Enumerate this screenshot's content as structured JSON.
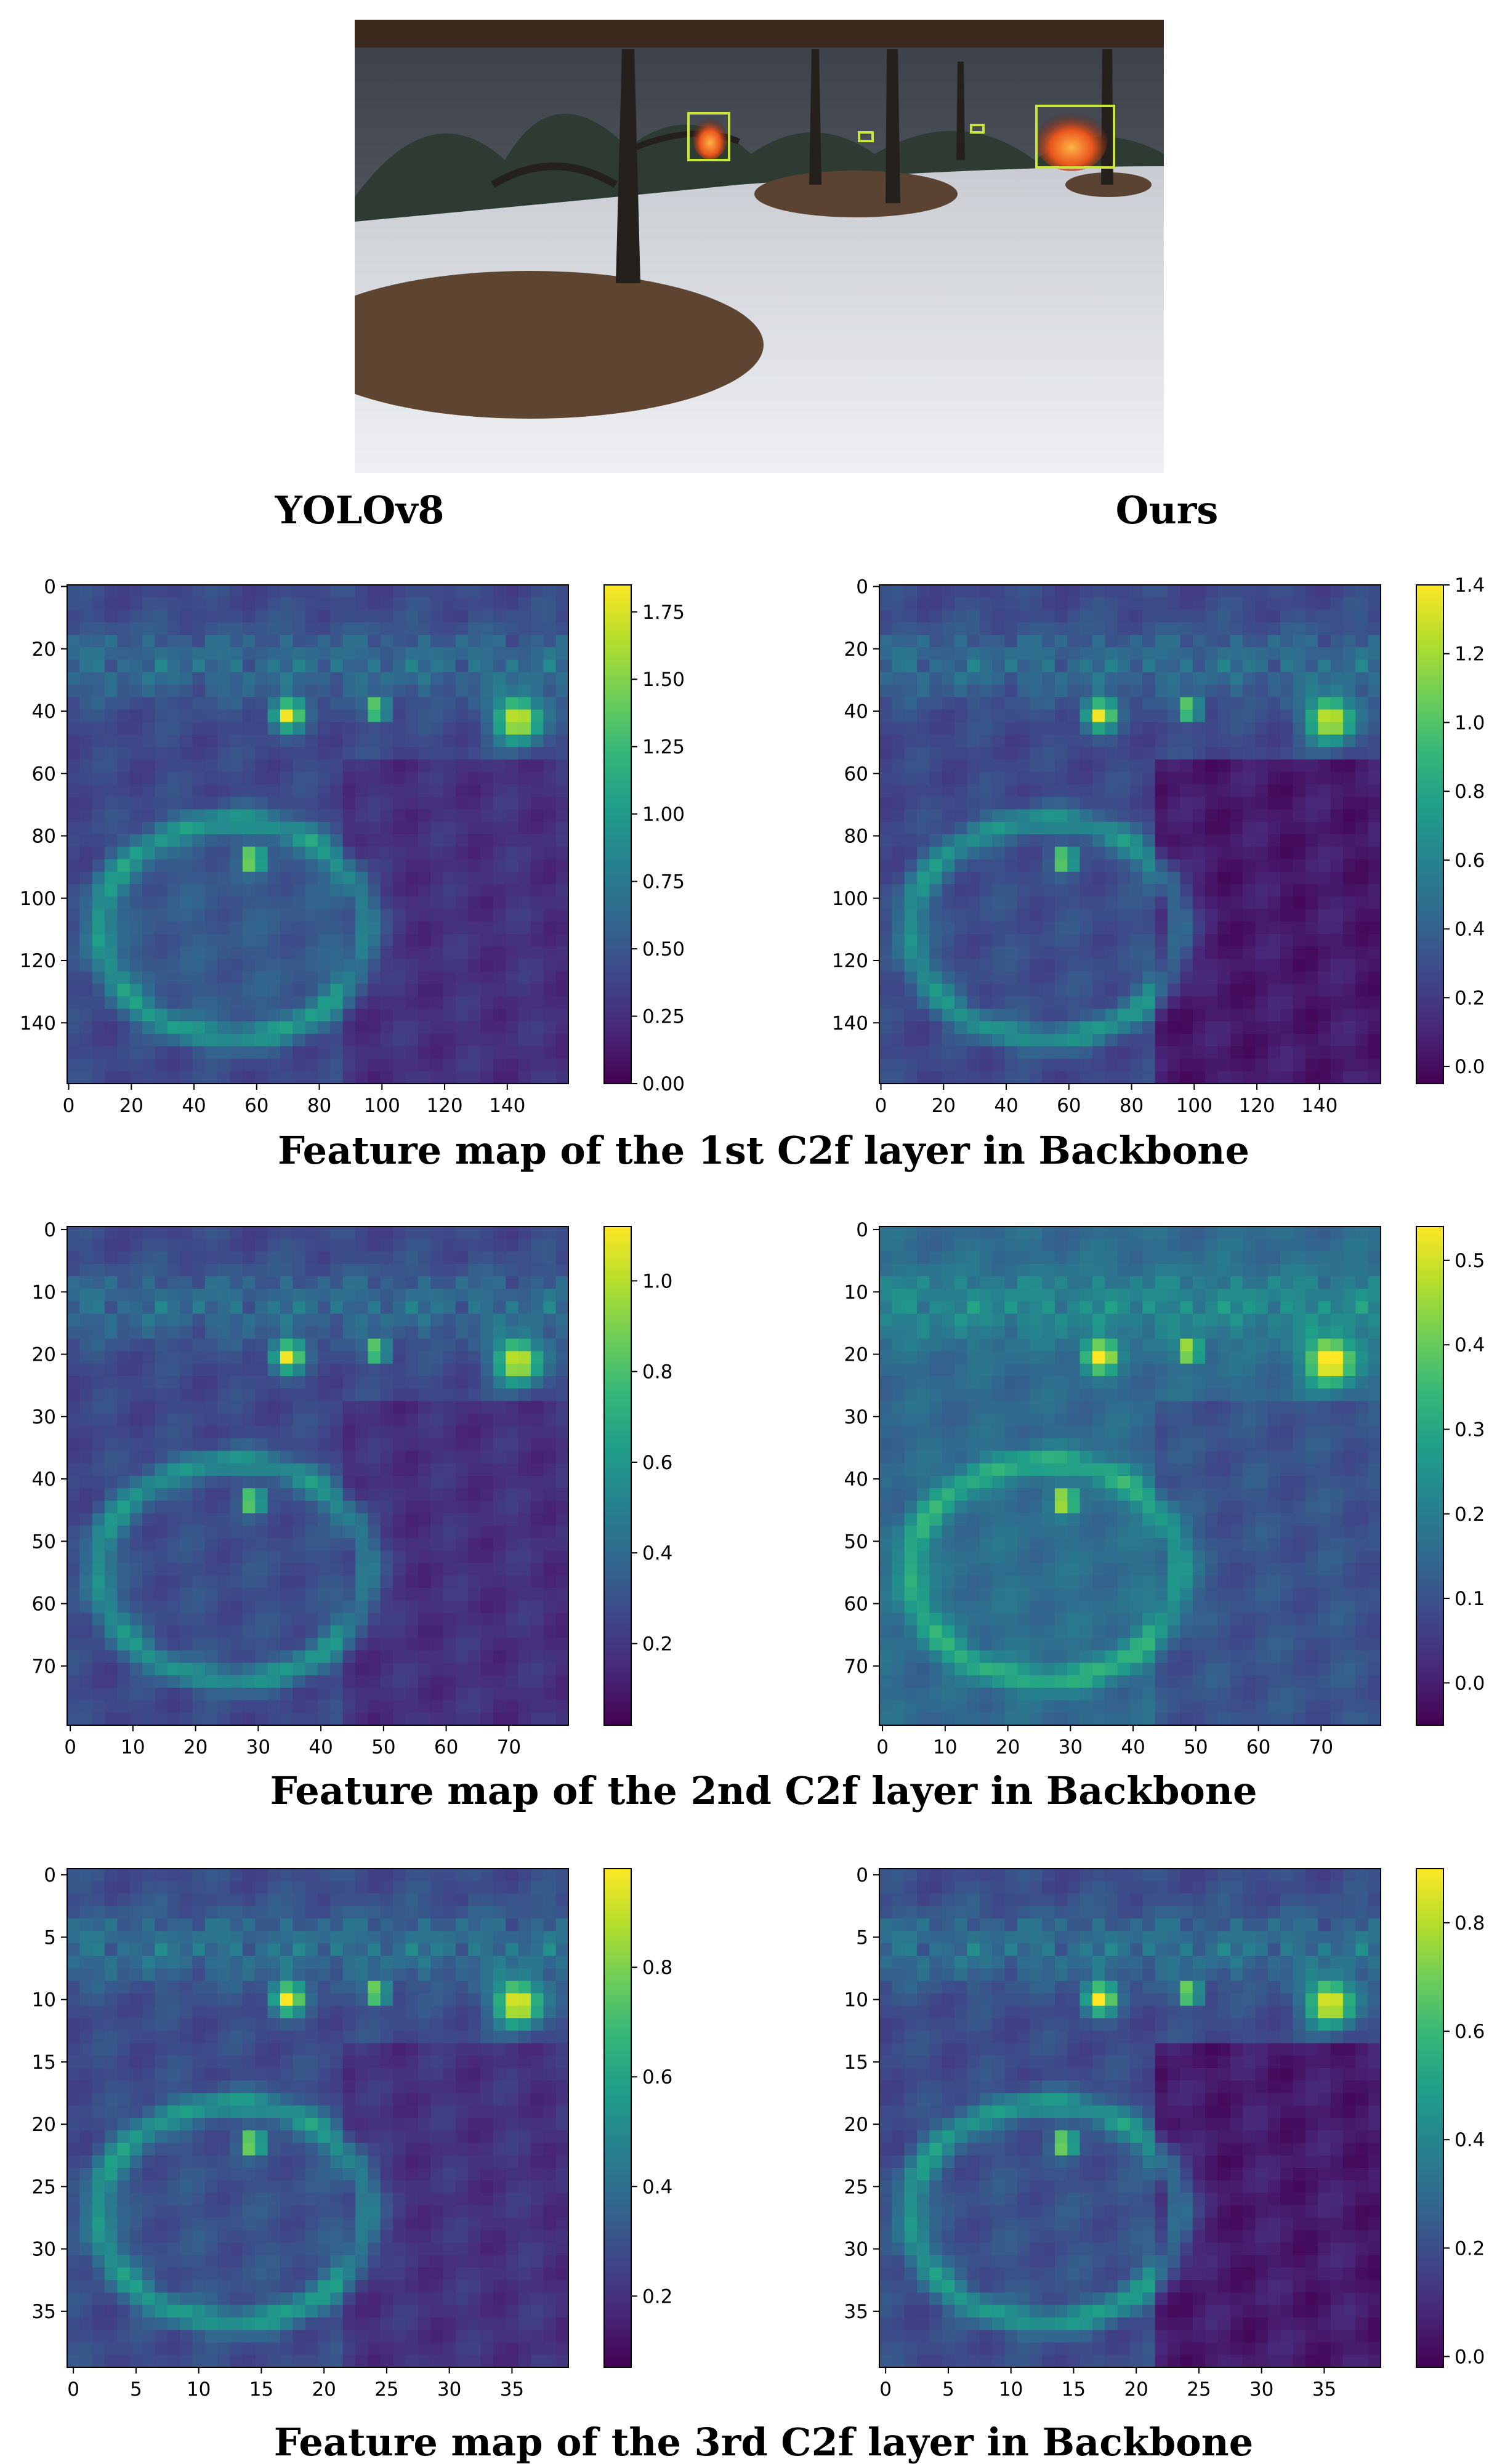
{
  "figure": {
    "model_labels": [
      "YOLOv8",
      "Ours"
    ],
    "captions": [
      "Feature map of the 1st C2f layer in Backbone",
      "Feature map of the 2nd C2f layer in Backbone",
      "Feature map of the 3rd C2f layer in Backbone"
    ]
  },
  "colors": {
    "viridis": [
      "#440154",
      "#482878",
      "#3e4989",
      "#31688e",
      "#26828e",
      "#1f9e89",
      "#35b779",
      "#6ece58",
      "#b5de2b",
      "#fde725"
    ],
    "detection_box": "#c8e63c"
  },
  "chart_data": [
    {
      "type": "heatmap",
      "row": 1,
      "col": 1,
      "grid": [
        160,
        160
      ],
      "xticks": [
        0,
        20,
        40,
        60,
        80,
        100,
        120,
        140
      ],
      "xlabels": [
        "0",
        "20",
        "40",
        "60",
        "80",
        "100",
        "120",
        "140"
      ],
      "yticks": [
        0,
        20,
        40,
        60,
        80,
        100,
        120,
        140
      ],
      "ylabels": [
        "0",
        "20",
        "40",
        "60",
        "80",
        "100",
        "120",
        "140"
      ],
      "cbar_ticks": [
        "1.75",
        "1.50",
        "1.25",
        "1.00",
        "0.75",
        "0.50",
        "0.25",
        "0.00"
      ],
      "cbar_values": [
        1.75,
        1.5,
        1.25,
        1.0,
        0.75,
        0.5,
        0.25,
        0.0
      ],
      "vmin": 0.0,
      "vmax": 1.85
    },
    {
      "type": "heatmap",
      "row": 1,
      "col": 2,
      "grid": [
        160,
        160
      ],
      "xticks": [
        0,
        20,
        40,
        60,
        80,
        100,
        120,
        140
      ],
      "xlabels": [
        "0",
        "20",
        "40",
        "60",
        "80",
        "100",
        "120",
        "140"
      ],
      "yticks": [
        0,
        20,
        40,
        60,
        80,
        100,
        120,
        140
      ],
      "ylabels": [
        "0",
        "20",
        "40",
        "60",
        "80",
        "100",
        "120",
        "140"
      ],
      "cbar_ticks": [
        "1.4",
        "1.2",
        "1.0",
        "0.8",
        "0.6",
        "0.4",
        "0.2",
        "0.0"
      ],
      "cbar_values": [
        1.4,
        1.2,
        1.0,
        0.8,
        0.6,
        0.4,
        0.2,
        0.0
      ],
      "vmin": -0.05,
      "vmax": 1.4
    },
    {
      "type": "heatmap",
      "row": 2,
      "col": 1,
      "grid": [
        80,
        80
      ],
      "xticks": [
        0,
        10,
        20,
        30,
        40,
        50,
        60,
        70
      ],
      "xlabels": [
        "0",
        "10",
        "20",
        "30",
        "40",
        "50",
        "60",
        "70"
      ],
      "yticks": [
        0,
        10,
        20,
        30,
        40,
        50,
        60,
        70
      ],
      "ylabels": [
        "0",
        "10",
        "20",
        "30",
        "40",
        "50",
        "60",
        "70"
      ],
      "cbar_ticks": [
        "1.0",
        "0.8",
        "0.6",
        "0.4",
        "0.2"
      ],
      "cbar_values": [
        1.0,
        0.8,
        0.6,
        0.4,
        0.2
      ],
      "vmin": 0.02,
      "vmax": 1.12
    },
    {
      "type": "heatmap",
      "row": 2,
      "col": 2,
      "grid": [
        80,
        80
      ],
      "xticks": [
        0,
        10,
        20,
        30,
        40,
        50,
        60,
        70
      ],
      "xlabels": [
        "0",
        "10",
        "20",
        "30",
        "40",
        "50",
        "60",
        "70"
      ],
      "yticks": [
        0,
        10,
        20,
        30,
        40,
        50,
        60,
        70
      ],
      "ylabels": [
        "0",
        "10",
        "20",
        "30",
        "40",
        "50",
        "60",
        "70"
      ],
      "cbar_ticks": [
        "0.5",
        "0.4",
        "0.3",
        "0.2",
        "0.1",
        "0.0"
      ],
      "cbar_values": [
        0.5,
        0.4,
        0.3,
        0.2,
        0.1,
        0.0
      ],
      "vmin": -0.05,
      "vmax": 0.54
    },
    {
      "type": "heatmap",
      "row": 3,
      "col": 1,
      "grid": [
        40,
        40
      ],
      "xticks": [
        0,
        5,
        10,
        15,
        20,
        25,
        30,
        35
      ],
      "xlabels": [
        "0",
        "5",
        "10",
        "15",
        "20",
        "25",
        "30",
        "35"
      ],
      "yticks": [
        0,
        5,
        10,
        15,
        20,
        25,
        30,
        35
      ],
      "ylabels": [
        "0",
        "5",
        "10",
        "15",
        "20",
        "25",
        "30",
        "35"
      ],
      "cbar_ticks": [
        "0.8",
        "0.6",
        "0.4",
        "0.2"
      ],
      "cbar_values": [
        0.8,
        0.6,
        0.4,
        0.2
      ],
      "vmin": 0.07,
      "vmax": 0.98
    },
    {
      "type": "heatmap",
      "row": 3,
      "col": 2,
      "grid": [
        40,
        40
      ],
      "xticks": [
        0,
        5,
        10,
        15,
        20,
        25,
        30,
        35
      ],
      "xlabels": [
        "0",
        "5",
        "10",
        "15",
        "20",
        "25",
        "30",
        "35"
      ],
      "yticks": [
        0,
        5,
        10,
        15,
        20,
        25,
        30,
        35
      ],
      "ylabels": [
        "0",
        "5",
        "10",
        "15",
        "20",
        "25",
        "30",
        "35"
      ],
      "cbar_ticks": [
        "0.8",
        "0.6",
        "0.4",
        "0.2",
        "0.0"
      ],
      "cbar_values": [
        0.8,
        0.6,
        0.4,
        0.2,
        0.0
      ],
      "vmin": -0.02,
      "vmax": 0.9
    }
  ]
}
